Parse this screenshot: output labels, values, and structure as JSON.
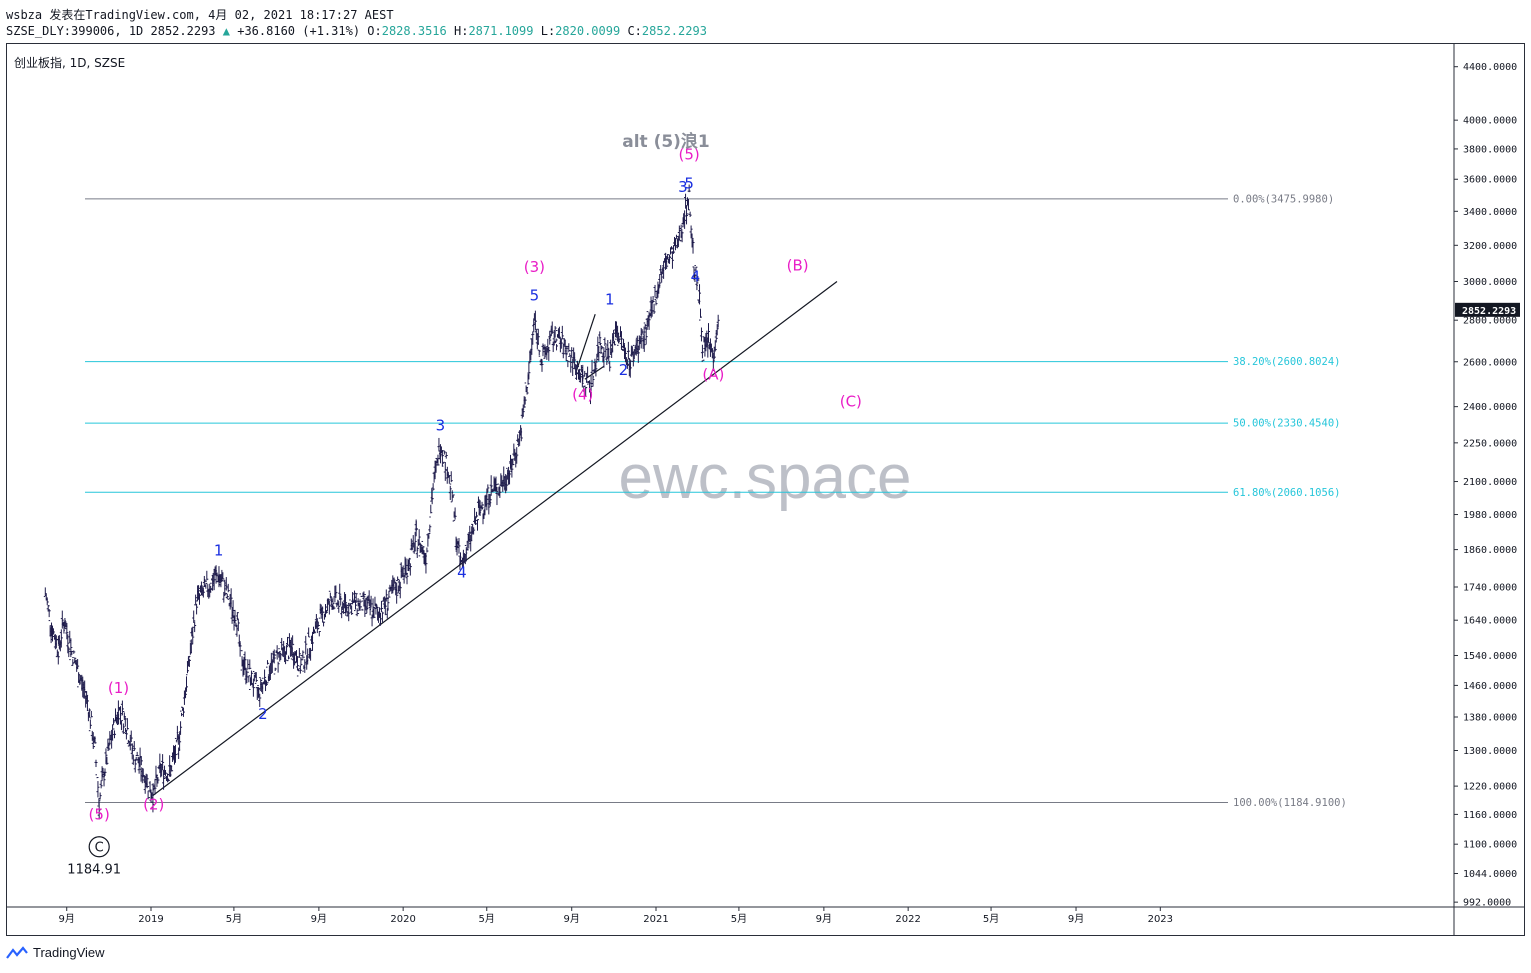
{
  "header": {
    "line1": "wsbza 发表在TradingView.com, 4月 02, 2021 18:17:27 AEST",
    "symbol_info": "SZSE_DLY:399006, 1D 2852.2293",
    "change": "+36.8160 (+1.31%)",
    "o_label": "O:",
    "o_value": "2828.3516",
    "h_label": "H:",
    "h_value": "2871.1099",
    "l_label": "L:",
    "l_value": "2820.0099",
    "c_label": "C:",
    "c_value": "2852.2293"
  },
  "symbol_title": "创业板指, 1D, SZSE",
  "footer": {
    "brand": "TradingView"
  },
  "chart_data": {
    "type": "candlestick",
    "y_axis_labels": [
      "4400.0000",
      "4000.0000",
      "3800.0000",
      "3600.0000",
      "3400.0000",
      "3200.0000",
      "3000.0000",
      "2800.0000",
      "2600.0000",
      "2400.0000",
      "2250.0000",
      "2100.0000",
      "1980.0000",
      "1860.0000",
      "1740.0000",
      "1640.0000",
      "1540.0000",
      "1460.0000",
      "1380.0000",
      "1300.0000",
      "1220.0000",
      "1160.0000",
      "1100.0000",
      "1044.0000",
      "992.0000"
    ],
    "y_scale": "log",
    "last_price_label": "2852.2293",
    "x_axis_labels": [
      "9月",
      "2019",
      "5月",
      "9月",
      "2020",
      "5月",
      "9月",
      "2021",
      "5月",
      "9月",
      "2022",
      "5月",
      "9月",
      "2023"
    ],
    "fib_levels": [
      {
        "label": "0.00%(3475.9980)",
        "price": 3475.998,
        "color": "#787b86"
      },
      {
        "label": "38.20%(2600.8024)",
        "price": 2600.8024,
        "color": "#26c6da"
      },
      {
        "label": "50.00%(2330.4540)",
        "price": 2330.454,
        "color": "#26c6da"
      },
      {
        "label": "61.80%(2060.1056)",
        "price": 2060.1056,
        "color": "#26c6da"
      },
      {
        "label": "100.00%(1184.9100)",
        "price": 1184.91,
        "color": "#787b86"
      }
    ],
    "price_path": [
      [
        "2018-08-01",
        1720
      ],
      [
        "2018-08-10",
        1620
      ],
      [
        "2018-08-20",
        1560
      ],
      [
        "2018-08-28",
        1640
      ],
      [
        "2018-09-07",
        1560
      ],
      [
        "2018-09-20",
        1480
      ],
      [
        "2018-10-01",
        1420
      ],
      [
        "2018-10-12",
        1300
      ],
      [
        "2018-10-18",
        1184.91
      ],
      [
        "2018-10-25",
        1250
      ],
      [
        "2018-11-05",
        1330
      ],
      [
        "2018-11-15",
        1400
      ],
      [
        "2018-11-25",
        1370
      ],
      [
        "2018-12-05",
        1300
      ],
      [
        "2018-12-18",
        1260
      ],
      [
        "2019-01-04",
        1200
      ],
      [
        "2019-01-15",
        1260
      ],
      [
        "2019-01-28",
        1250
      ],
      [
        "2019-02-10",
        1320
      ],
      [
        "2019-02-20",
        1450
      ],
      [
        "2019-03-01",
        1580
      ],
      [
        "2019-03-08",
        1700
      ],
      [
        "2019-03-20",
        1730
      ],
      [
        "2019-04-01",
        1760
      ],
      [
        "2019-04-08",
        1780
      ],
      [
        "2019-04-20",
        1720
      ],
      [
        "2019-05-06",
        1640
      ],
      [
        "2019-05-10",
        1540
      ],
      [
        "2019-05-25",
        1480
      ],
      [
        "2019-06-06",
        1440
      ],
      [
        "2019-06-20",
        1500
      ],
      [
        "2019-07-05",
        1540
      ],
      [
        "2019-07-25",
        1560
      ],
      [
        "2019-08-06",
        1510
      ],
      [
        "2019-08-20",
        1580
      ],
      [
        "2019-09-05",
        1650
      ],
      [
        "2019-09-20",
        1700
      ],
      [
        "2019-10-10",
        1680
      ],
      [
        "2019-10-25",
        1690
      ],
      [
        "2019-11-10",
        1680
      ],
      [
        "2019-11-25",
        1660
      ],
      [
        "2019-12-10",
        1700
      ],
      [
        "2019-12-25",
        1750
      ],
      [
        "2020-01-10",
        1820
      ],
      [
        "2020-01-20",
        1900
      ],
      [
        "2020-02-03",
        1840
      ],
      [
        "2020-02-12",
        2050
      ],
      [
        "2020-02-24",
        2250
      ],
      [
        "2020-03-05",
        2150
      ],
      [
        "2020-03-12",
        2050
      ],
      [
        "2020-03-19",
        1880
      ],
      [
        "2020-03-24",
        1810
      ],
      [
        "2020-04-05",
        1880
      ],
      [
        "2020-04-20",
        1990
      ],
      [
        "2020-05-06",
        2060
      ],
      [
        "2020-05-20",
        2080
      ],
      [
        "2020-06-05",
        2150
      ],
      [
        "2020-06-20",
        2300
      ],
      [
        "2020-07-01",
        2550
      ],
      [
        "2020-07-09",
        2800
      ],
      [
        "2020-07-20",
        2600
      ],
      [
        "2020-08-01",
        2700
      ],
      [
        "2020-08-10",
        2720
      ],
      [
        "2020-08-25",
        2650
      ],
      [
        "2020-09-08",
        2580
      ],
      [
        "2020-09-17",
        2520
      ],
      [
        "2020-09-29",
        2500
      ],
      [
        "2020-10-12",
        2700
      ],
      [
        "2020-10-26",
        2620
      ],
      [
        "2020-11-05",
        2760
      ],
      [
        "2020-11-15",
        2660
      ],
      [
        "2020-11-25",
        2600
      ],
      [
        "2020-12-05",
        2680
      ],
      [
        "2020-12-15",
        2720
      ],
      [
        "2020-12-25",
        2820
      ],
      [
        "2021-01-05",
        3000
      ],
      [
        "2021-01-15",
        3100
      ],
      [
        "2021-01-25",
        3150
      ],
      [
        "2021-02-05",
        3250
      ],
      [
        "2021-02-10",
        3380
      ],
      [
        "2021-02-18",
        3475
      ],
      [
        "2021-02-25",
        3100
      ],
      [
        "2021-03-05",
        2900
      ],
      [
        "2021-03-10",
        2650
      ],
      [
        "2021-03-18",
        2700
      ],
      [
        "2021-03-25",
        2620
      ],
      [
        "2021-04-02",
        2852.23
      ]
    ],
    "trendline": [
      [
        "2019-01-04",
        1200
      ],
      [
        "2021-09-20",
        3000
      ]
    ],
    "triangle_lines": [
      [
        [
          "2020-09-08",
          2560
        ],
        [
          "2020-10-05",
          2830
        ]
      ],
      [
        [
          "2020-09-20",
          2520
        ],
        [
          "2020-10-18",
          2580
        ]
      ]
    ],
    "wave_labels": [
      {
        "text": "(1)",
        "date": "2018-11-15",
        "price": 1440,
        "color": "#e91ec7"
      },
      {
        "text": "(2)",
        "date": "2019-01-05",
        "price": 1170,
        "color": "#e91ec7"
      },
      {
        "text": "(5)",
        "date": "2018-10-18",
        "price": 1150,
        "color": "#e91ec7"
      },
      {
        "text": "1",
        "date": "2019-04-09",
        "price": 1840,
        "color": "#1a2fe0"
      },
      {
        "text": "2",
        "date": "2019-06-12",
        "price": 1375,
        "color": "#1a2fe0"
      },
      {
        "text": "3",
        "date": "2020-02-24",
        "price": 2300,
        "color": "#1a2fe0"
      },
      {
        "text": "4",
        "date": "2020-03-26",
        "price": 1770,
        "color": "#1a2fe0"
      },
      {
        "text": "5",
        "date": "2020-07-09",
        "price": 2900,
        "color": "#1a2fe0"
      },
      {
        "text": "(3)",
        "date": "2020-07-09",
        "price": 3050,
        "color": "#e91ec7"
      },
      {
        "text": "(4)",
        "date": "2020-09-17",
        "price": 2430,
        "color": "#e91ec7"
      },
      {
        "text": "1",
        "date": "2020-10-26",
        "price": 2880,
        "color": "#1a2fe0"
      },
      {
        "text": "2",
        "date": "2020-11-15",
        "price": 2540,
        "color": "#1a2fe0"
      },
      {
        "text": "3",
        "date": "2021-02-09",
        "price": 3520,
        "color": "#1a2fe0"
      },
      {
        "text": "5",
        "date": "2021-02-18",
        "price": 3540,
        "color": "#1a2fe0"
      },
      {
        "text": "(5)",
        "date": "2021-02-18",
        "price": 3730,
        "color": "#e91ec7"
      },
      {
        "text": "4",
        "date": "2021-02-27",
        "price": 3000,
        "color": "#1a2fe0"
      },
      {
        "text": "(A)",
        "date": "2021-03-25",
        "price": 2520,
        "color": "#e91ec7"
      },
      {
        "text": "(B)",
        "date": "2021-07-25",
        "price": 3060,
        "color": "#e91ec7"
      },
      {
        "text": "(C)",
        "date": "2021-10-10",
        "price": 2400,
        "color": "#e91ec7"
      }
    ],
    "circle_label": {
      "text": "C",
      "date": "2018-10-18",
      "price": 1095
    },
    "low_value_label": "1184.91",
    "alt_title": "alt (5)浪1",
    "watermark": "ewc.space"
  }
}
